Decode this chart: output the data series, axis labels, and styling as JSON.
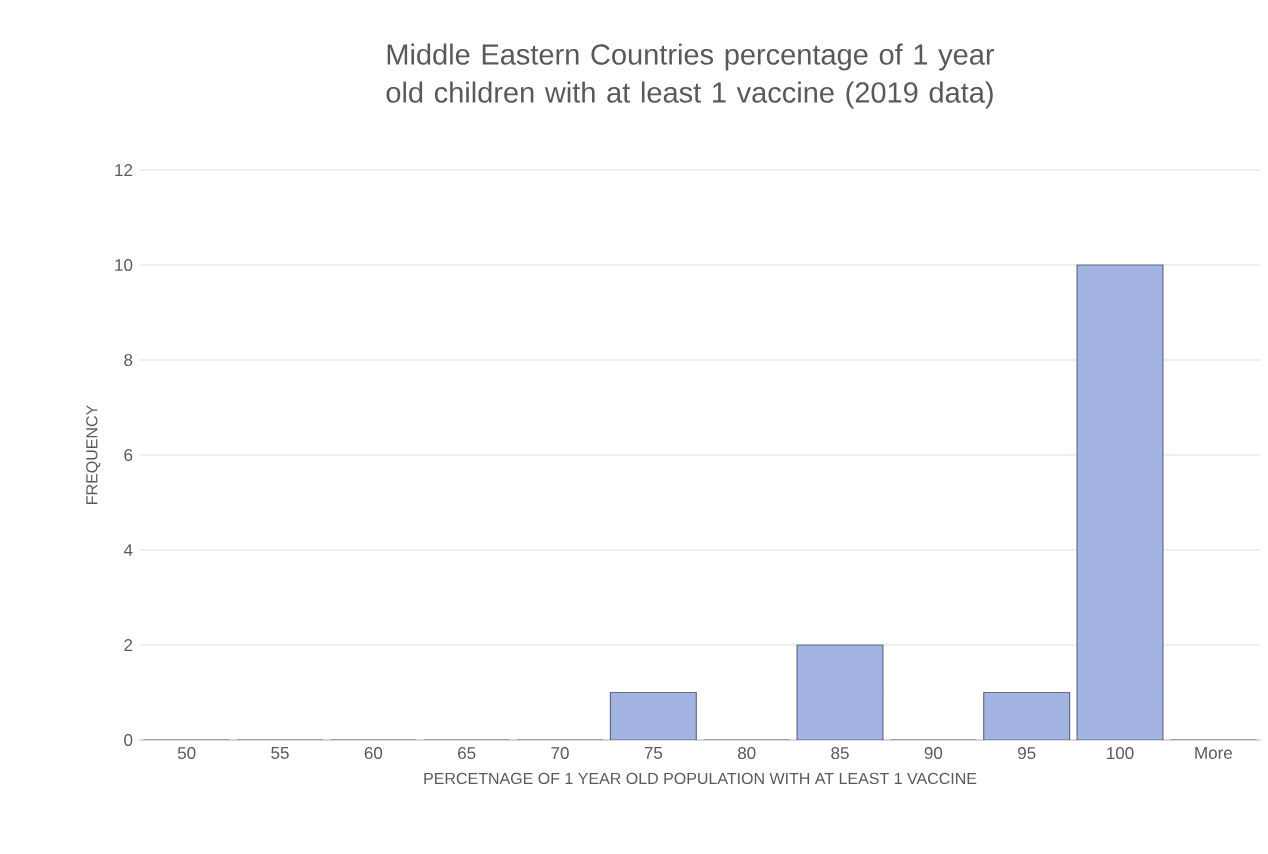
{
  "chart_data": {
    "type": "bar",
    "title": "Middle Eastern Countries percentage of 1 year old children with at least 1 vaccine (2019 data)",
    "xlabel": "PERCETNAGE OF 1 YEAR OLD POPULATION WITH AT LEAST 1 VACCINE",
    "ylabel": "FREQUENCY",
    "categories": [
      "50",
      "55",
      "60",
      "65",
      "70",
      "75",
      "80",
      "85",
      "90",
      "95",
      "100",
      "More"
    ],
    "values": [
      0,
      0,
      0,
      0,
      0,
      1,
      0,
      2,
      0,
      1,
      10,
      0
    ],
    "color": "#a3b4e2",
    "ylim": [
      0,
      12
    ],
    "yticks": [
      0,
      2,
      4,
      6,
      8,
      10,
      12
    ],
    "grid": "y"
  }
}
